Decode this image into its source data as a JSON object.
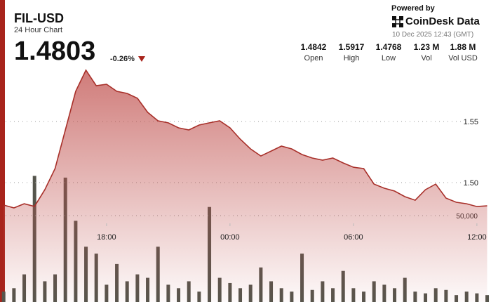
{
  "header": {
    "symbol": "FIL-USD",
    "subtitle": "24 Hour Chart",
    "price": "1.4803",
    "change": "-0.26%",
    "powered_by": "Powered by",
    "brand": "CoinDesk Data",
    "timestamp": "10 Dec 2025 12:43 (GMT)",
    "stats": [
      {
        "value": "1.4842",
        "label": "Open"
      },
      {
        "value": "1.5917",
        "label": "High"
      },
      {
        "value": "1.4768",
        "label": "Low"
      },
      {
        "value": "1.23 M",
        "label": "Vol"
      },
      {
        "value": "1.88 M",
        "label": "Vol USD"
      }
    ]
  },
  "chart_data": {
    "type": "line",
    "x": [
      13.0,
      13.5,
      14.0,
      14.5,
      15.0,
      15.5,
      16.0,
      16.5,
      17.0,
      17.5,
      18.0,
      18.5,
      19.0,
      19.5,
      20.0,
      20.5,
      21.0,
      21.5,
      22.0,
      22.5,
      23.0,
      23.5,
      24.0,
      24.5,
      25.0,
      25.5,
      26.0,
      26.5,
      27.0,
      27.5,
      28.0,
      28.5,
      29.0,
      29.5,
      30.0,
      30.5,
      31.0,
      31.5,
      32.0,
      32.5,
      33.0,
      33.5,
      34.0,
      34.5,
      35.0,
      35.5,
      36.0,
      36.5
    ],
    "xlim": [
      12.72,
      36.72
    ],
    "xticks": [
      {
        "value": 18,
        "label": "18:00"
      },
      {
        "value": 24,
        "label": "00:00"
      },
      {
        "value": 30,
        "label": "06:00"
      },
      {
        "value": 36,
        "label": "12:00"
      }
    ],
    "ylim": [
      1.4,
      1.6
    ],
    "yticks": [
      {
        "value": 1.5,
        "label": "1.50"
      },
      1.55
    ],
    "y2lim": [
      0,
      150000
    ],
    "y2ticks": [
      {
        "value": 50000,
        "label": "50,000"
      }
    ],
    "grid": true,
    "series": [
      {
        "color": "#a8302a",
        "values": [
          1.4816,
          1.4793,
          1.4827,
          1.4805,
          1.4942,
          1.5115,
          1.5431,
          1.5747,
          1.592,
          1.5793,
          1.5805,
          1.5747,
          1.573,
          1.569,
          1.5575,
          1.5506,
          1.5489,
          1.5448,
          1.5431,
          1.5471,
          1.5489,
          1.5506,
          1.5448,
          1.5356,
          1.5276,
          1.5218,
          1.5258,
          1.5299,
          1.5276,
          1.523,
          1.5201,
          1.5184,
          1.5201,
          1.5161,
          1.5126,
          1.5115,
          1.4988,
          1.4954,
          1.4931,
          1.4885,
          1.4856,
          1.4942,
          1.4988,
          1.4873,
          1.4839,
          1.4827,
          1.4804,
          1.481
        ]
      },
      {
        "type": "bar",
        "axis": "y2",
        "color": "#55554c",
        "values": [
          6000,
          8000,
          16000,
          73000,
          12000,
          16000,
          72000,
          47000,
          32000,
          28000,
          10000,
          22000,
          12000,
          16000,
          14000,
          32000,
          10000,
          8000,
          12000,
          6000,
          55000,
          14000,
          11000,
          8000,
          10000,
          20000,
          12000,
          8000,
          6000,
          28000,
          7000,
          12000,
          8000,
          18000,
          8000,
          6000,
          12000,
          10000,
          8000,
          14000,
          6000,
          5000,
          8000,
          7000,
          4000,
          6000,
          5000,
          4000
        ]
      }
    ]
  }
}
